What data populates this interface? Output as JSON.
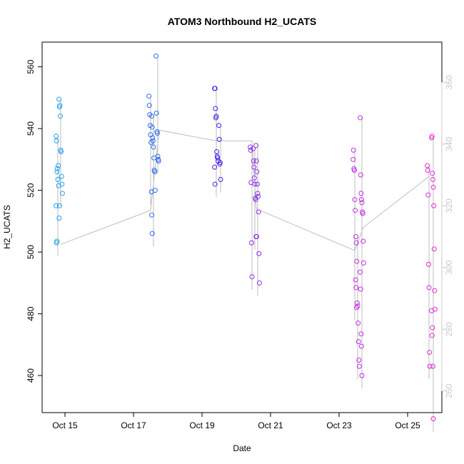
{
  "chart_data": {
    "type": "scatter",
    "title": "ATOM3 Northbound H2_UCATS",
    "xlabel": "Date",
    "ylabel": "H2_UCATS",
    "x_ticks": [
      "Oct 15",
      "Oct 17",
      "Oct 19",
      "Oct 21",
      "Oct 23",
      "Oct 25"
    ],
    "x_tick_dates": [
      "2017-10-15",
      "2017-10-17",
      "2017-10-19",
      "2017-10-21",
      "2017-10-23",
      "2017-10-25"
    ],
    "xlim": [
      "2017-10-14 08:00",
      "2017-10-26 00:00"
    ],
    "y_ticks": [
      460,
      480,
      500,
      520,
      540,
      560
    ],
    "ylim": [
      448,
      568
    ],
    "y2_ticks": [
      260,
      280,
      300,
      320,
      340,
      360
    ],
    "y2_axis_color": "#c8c8c8",
    "line_color": "#bebebe",
    "grid": false,
    "series": [
      {
        "color": "#1fa3f0",
        "points": [
          {
            "x": "2017-10-14 19:00",
            "y": [
              537.5,
              536,
              526,
              527,
              523.5,
              528,
              521.5,
              511,
              515,
              515,
              503,
              503.5
            ]
          },
          {
            "x": "2017-10-14 21:00",
            "y": [
              549.5,
              547,
              547.5,
              544,
              533,
              532.5,
              524.5,
              522,
              519
            ]
          }
        ]
      },
      {
        "color": "#2f6cf0",
        "points": [
          {
            "x": "2017-10-17 12:00",
            "y": [
              550.5,
              547.5,
              544.5,
              541,
              538,
              535.5,
              519.5
            ]
          },
          {
            "x": "2017-10-17 14:00",
            "y": [
              544,
              540.5,
              537,
              536,
              534,
              530.5,
              526.5,
              526,
              520,
              512,
              506
            ]
          },
          {
            "x": "2017-10-17 17:00",
            "y": [
              563.5,
              545,
              539,
              538.5,
              531,
              530,
              529.5
            ]
          }
        ]
      },
      {
        "color": "#4a1de8",
        "points": [
          {
            "x": "2017-10-19 10:00",
            "y": [
              553,
              553,
              546.5,
              543.5,
              544,
              532.5,
              531,
              530.5,
              529.5,
              527.5,
              522
            ]
          },
          {
            "x": "2017-10-19 13:00",
            "y": [
              541,
              536.5,
              528.5,
              529,
              523.5
            ]
          }
        ]
      },
      {
        "color": "#8a2fe8",
        "points": [
          {
            "x": "2017-10-20 11:00",
            "y": [
              534,
              533,
              522.5,
              503,
              492
            ]
          },
          {
            "x": "2017-10-20 13:00",
            "y": [
              533.5,
              529.5,
              527.5,
              524,
              522,
              517.5,
              517,
              505,
              505
            ]
          },
          {
            "x": "2017-10-20 15:00",
            "y": [
              534.5,
              529.5,
              526,
              522,
              519,
              518,
              513,
              499.5,
              490
            ]
          }
        ]
      },
      {
        "color": "#c22ce8",
        "points": [
          {
            "x": "2017-10-23 11:00",
            "y": [
              530,
              533,
              527,
              526.5,
              517,
              513.5,
              491,
              488.5,
              482
            ]
          },
          {
            "x": "2017-10-23 13:00",
            "y": [
              505,
              503,
              497,
              483.5,
              482.5,
              477,
              471,
              465,
              463
            ]
          },
          {
            "x": "2017-10-23 16:00",
            "y": [
              543.5,
              525,
              519,
              517,
              516,
              513,
              512.5,
              503.5,
              496.5,
              493.5,
              488,
              473.5,
              469.5,
              460
            ]
          }
        ]
      },
      {
        "color": "#e32ad6",
        "points": [
          {
            "x": "2017-10-25 15:00",
            "y": [
              528,
              526.5,
              518.5,
              496,
              488.5,
              467.5,
              463
            ]
          },
          {
            "x": "2017-10-25 18:00",
            "y": [
              537,
              537.5,
              525.5,
              523.5,
              521,
              515,
              501,
              487.5,
              481.5,
              481,
              473,
              475.5,
              463,
              446
            ]
          }
        ]
      }
    ],
    "flight_track": [
      {
        "x": "2017-10-14 21:00",
        "y": 502.5
      },
      {
        "x": "2017-10-17 12:00",
        "y": 513.5
      },
      {
        "x": "2017-10-17 18:00",
        "y": 539.5
      },
      {
        "x": "2017-10-19 10:00",
        "y": 536
      },
      {
        "x": "2017-10-20 11:00",
        "y": 536
      },
      {
        "x": "2017-10-20 14:00",
        "y": 514
      },
      {
        "x": "2017-10-23 11:00",
        "y": 500.5
      },
      {
        "x": "2017-10-23 17:00",
        "y": 508
      },
      {
        "x": "2017-10-25 15:00",
        "y": 524.5
      }
    ]
  }
}
